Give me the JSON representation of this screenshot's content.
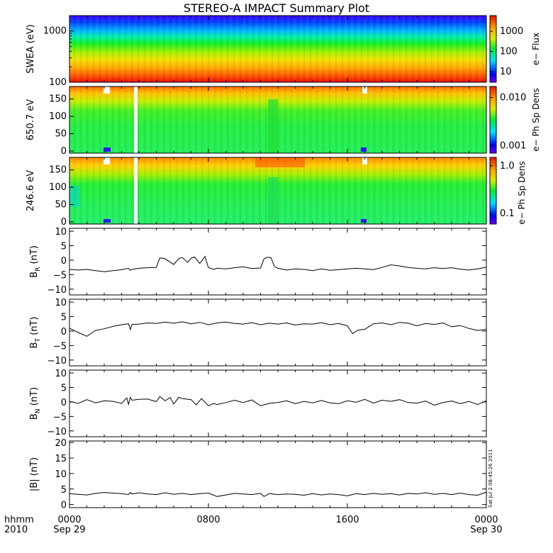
{
  "figure": {
    "title": "STEREO-A IMPACT Summary Plot",
    "time_row1_label": "hhmm",
    "time_row2_label": "2010",
    "timestamp": "Sat Jul  2 08:45:26 2011"
  },
  "chart_data": [
    {
      "type": "heatmap",
      "name": "swea-spectrogram",
      "ylabel": "SWEA (eV)",
      "y_scale": "log",
      "ylim": [
        100,
        2000
      ],
      "y_ticks": [
        "1000",
        "100"
      ],
      "colorbar": {
        "label": "e− Flux",
        "scale": "log",
        "ticks": [
          "1000",
          "100",
          "10"
        ],
        "range": [
          3,
          6000
        ]
      }
    },
    {
      "type": "heatmap",
      "name": "pad-650",
      "ylabel": "650.7 eV",
      "ylim": [
        0,
        180
      ],
      "y_ticks": [
        "150",
        "100",
        "50",
        "0"
      ],
      "colorbar": {
        "label": "e− Ph Sp Dens",
        "scale": "log",
        "ticks": [
          "0.010",
          "0.001"
        ],
        "range": [
          0.0007,
          0.017
        ]
      }
    },
    {
      "type": "heatmap",
      "name": "pad-246",
      "ylabel": "246.6 eV",
      "ylim": [
        0,
        180
      ],
      "y_ticks": [
        "150",
        "100",
        "50",
        "0"
      ],
      "colorbar": {
        "label": "e− Ph Sp Dens",
        "scale": "log",
        "ticks": [
          "1.0",
          "0.1"
        ],
        "range": [
          0.06,
          1.5
        ]
      }
    },
    {
      "type": "line",
      "name": "br",
      "ylabel_main": "B",
      "ylabel_sub": "R",
      "ylabel_unit": " (nT)",
      "ylim": [
        -12,
        11
      ],
      "y_ticks": [
        "10",
        "5",
        "0",
        "−5",
        "−10"
      ],
      "x_hours": [
        0,
        0.5,
        1,
        1.5,
        2,
        2.5,
        3,
        3.4,
        3.5,
        3.6,
        4,
        4.5,
        5,
        5.2,
        5.5,
        6,
        6.3,
        6.5,
        6.8,
        7,
        7.2,
        7.5,
        7.8,
        8,
        8.3,
        8.5,
        9,
        9.5,
        10,
        10.5,
        11,
        11.2,
        11.4,
        11.6,
        11.8,
        12,
        12.5,
        13,
        13.5,
        14,
        14.5,
        15,
        15.5,
        16,
        16.5,
        17,
        17.5,
        18,
        18.5,
        19,
        19.5,
        20,
        20.5,
        21,
        21.5,
        22,
        22.5,
        23,
        23.5,
        24
      ],
      "values": [
        -3.2,
        -3.4,
        -3.2,
        -3.6,
        -4,
        -3.6,
        -3.3,
        -2.8,
        -3.5,
        -3.2,
        -2.8,
        -2.6,
        -2.5,
        0.8,
        0.5,
        -1.5,
        0.6,
        0.9,
        -0.8,
        0.7,
        1.1,
        -1.1,
        1.3,
        -2.6,
        -3.2,
        -2.8,
        -3.0,
        -2.6,
        -2.3,
        -2.9,
        -2.7,
        0.5,
        1.0,
        0.9,
        -2.2,
        -2.8,
        -3.4,
        -3.0,
        -3.2,
        -3.6,
        -3.0,
        -3.5,
        -3.3,
        -3.0,
        -2.8,
        -3.0,
        -3.3,
        -2.5,
        -1.6,
        -2.0,
        -2.5,
        -2.8,
        -3.0,
        -2.6,
        -2.9,
        -2.6,
        -3.1,
        -3.4,
        -3.0,
        -2.4
      ]
    },
    {
      "type": "line",
      "name": "bt",
      "ylabel_main": "B",
      "ylabel_sub": "T",
      "ylabel_unit": " (nT)",
      "ylim": [
        -12,
        11
      ],
      "y_ticks": [
        "10",
        "5",
        "0",
        "−5",
        "−10"
      ],
      "x_hours": [
        0,
        0.5,
        1,
        1.5,
        2,
        2.5,
        3,
        3.4,
        3.5,
        3.6,
        4,
        4.5,
        5,
        5.5,
        6,
        6.5,
        7,
        7.5,
        8,
        8.5,
        9,
        9.5,
        10,
        10.5,
        11,
        11.5,
        12,
        12.5,
        13,
        13.5,
        14,
        14.5,
        15,
        15.5,
        16,
        16.3,
        16.6,
        17,
        17.5,
        18,
        18.5,
        19,
        19.5,
        20,
        20.5,
        21,
        21.5,
        22,
        22.5,
        23,
        23.5,
        24
      ],
      "values": [
        1.0,
        -0.5,
        -1.8,
        0.2,
        0.8,
        1.6,
        2.2,
        2.5,
        0.5,
        2.3,
        2.4,
        2.8,
        2.6,
        3.1,
        2.7,
        3.2,
        2.5,
        3.0,
        2.2,
        2.8,
        3.1,
        2.6,
        2.4,
        2.9,
        2.2,
        2.7,
        2.4,
        2.8,
        2.1,
        2.5,
        2.4,
        2.9,
        2.2,
        2.6,
        1.8,
        -0.9,
        0.3,
        0.6,
        2.5,
        2.8,
        2.2,
        3.0,
        2.7,
        1.8,
        2.6,
        2.3,
        2.8,
        1.5,
        1.9,
        0.9,
        0.2,
        0.6
      ]
    },
    {
      "type": "line",
      "name": "bn",
      "ylabel_main": "B",
      "ylabel_sub": "N",
      "ylabel_unit": " (nT)",
      "ylim": [
        -12,
        11
      ],
      "y_ticks": [
        "10",
        "5",
        "0",
        "−5",
        "−10"
      ],
      "x_hours": [
        0,
        0.5,
        1,
        1.5,
        2,
        2.5,
        3,
        3.3,
        3.4,
        3.5,
        3.6,
        4,
        4.5,
        5,
        5.2,
        5.5,
        5.8,
        6,
        6.3,
        6.5,
        7,
        7.3,
        7.6,
        8,
        8.3,
        8.5,
        9,
        9.5,
        10,
        10.5,
        11,
        11.5,
        12,
        12.5,
        13,
        13.5,
        14,
        14.5,
        15,
        15.5,
        16,
        16.5,
        17,
        17.5,
        18,
        18.5,
        19,
        19.5,
        20,
        20.5,
        21,
        21.5,
        22,
        22.5,
        23,
        23.5,
        24
      ],
      "values": [
        0.2,
        -0.5,
        0.8,
        -0.3,
        0.4,
        0.2,
        -0.5,
        1.4,
        -0.8,
        1.6,
        0.6,
        0.9,
        1.0,
        0.1,
        1.9,
        0.4,
        1.5,
        -0.7,
        1.6,
        1.2,
        0.8,
        -1.0,
        1.2,
        -1.3,
        -0.5,
        -0.9,
        -0.2,
        0.6,
        -0.2,
        0.7,
        -1.3,
        -0.5,
        -0.2,
        0.4,
        -0.6,
        0.2,
        -0.3,
        0.5,
        -0.3,
        -0.6,
        0.4,
        -0.1,
        0.9,
        -0.4,
        0.6,
        0.2,
        0.8,
        -0.2,
        -0.4,
        0.3,
        -1.1,
        -0.2,
        0.3,
        -0.6,
        0.2,
        -0.9,
        0.4
      ]
    },
    {
      "type": "line",
      "name": "bmag",
      "ylabel_main": "|B| (nT)",
      "ylim": [
        -1,
        20.5
      ],
      "y_ticks": [
        "20",
        "15",
        "10",
        "5",
        "0"
      ],
      "x_hours": [
        0,
        0.5,
        1,
        1.5,
        2,
        2.5,
        3,
        3.4,
        3.5,
        3.6,
        4,
        4.5,
        5,
        5.5,
        6,
        6.5,
        7,
        7.5,
        8,
        8.5,
        9,
        9.5,
        10,
        10.5,
        11,
        11.2,
        11.5,
        12,
        12.5,
        13,
        13.5,
        14,
        14.5,
        15,
        15.5,
        16,
        16.5,
        17,
        17.5,
        18,
        18.5,
        19,
        19.5,
        20,
        20.5,
        21,
        21.5,
        22,
        22.5,
        23,
        23.5,
        24
      ],
      "values": [
        3.5,
        3.3,
        3.1,
        3.6,
        3.9,
        3.7,
        3.5,
        3.2,
        3.9,
        3.4,
        3.8,
        3.4,
        3.2,
        3.8,
        3.3,
        3.6,
        3.2,
        3.5,
        3.7,
        2.6,
        3.1,
        3.6,
        3.4,
        3.2,
        3.6,
        2.6,
        3.5,
        3.2,
        3.4,
        3.3,
        3.0,
        3.5,
        3.1,
        3.4,
        3.2,
        2.8,
        3.5,
        3.2,
        3.6,
        3.3,
        3.5,
        3.1,
        3.6,
        3.4,
        3.8,
        3.3,
        3.6,
        3.2,
        3.7,
        3.2,
        3.0,
        4.0
      ]
    }
  ],
  "time_axis": {
    "ticks": [
      {
        "hour": 0,
        "top": "0000",
        "bottom": "Sep 29"
      },
      {
        "hour": 8,
        "top": "0800",
        "bottom": ""
      },
      {
        "hour": 16,
        "top": "1600",
        "bottom": ""
      },
      {
        "hour": 24,
        "top": "0000",
        "bottom": "Sep 30"
      }
    ],
    "range_hours": [
      0,
      24
    ]
  }
}
